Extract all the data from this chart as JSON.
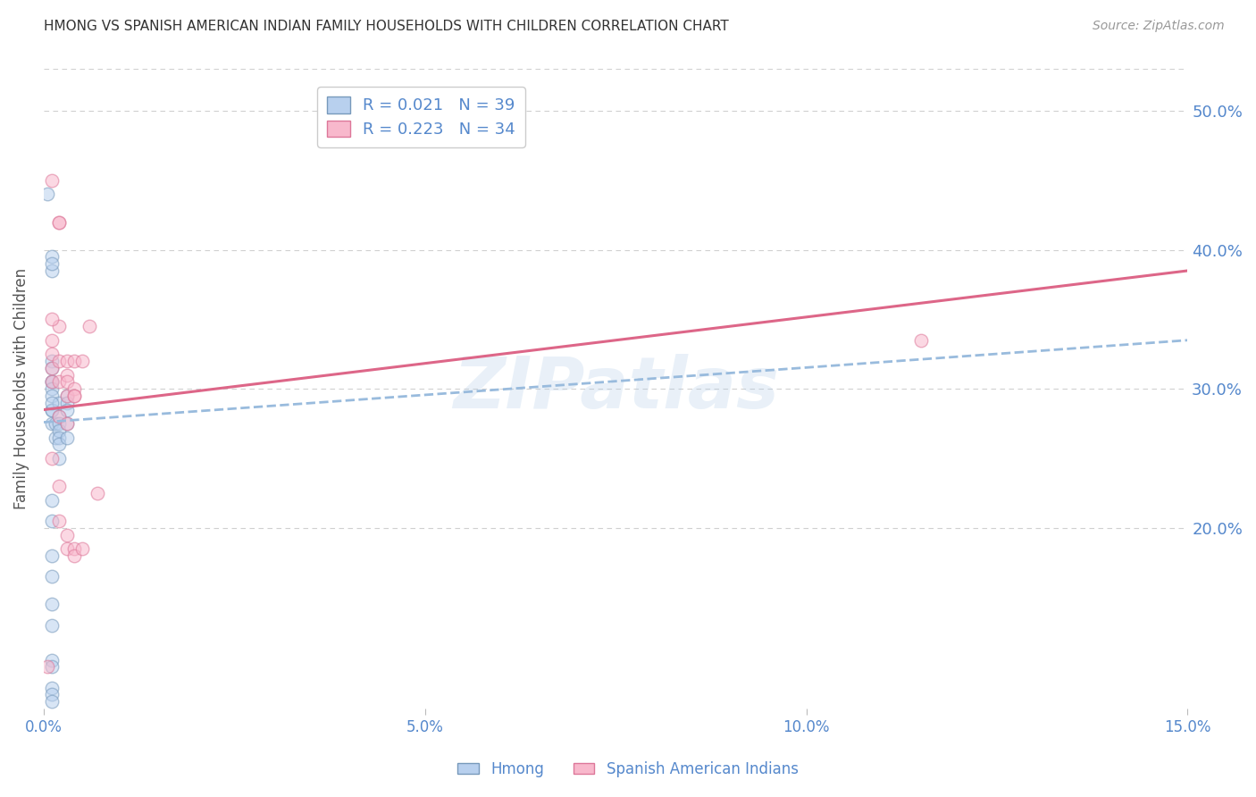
{
  "title": "HMONG VS SPANISH AMERICAN INDIAN FAMILY HOUSEHOLDS WITH CHILDREN CORRELATION CHART",
  "source": "Source: ZipAtlas.com",
  "ylabel": "Family Households with Children",
  "watermark": "ZIPatlas",
  "bottom_legend": [
    "Hmong",
    "Spanish American Indians"
  ],
  "xmin": 0.0,
  "xmax": 0.15,
  "ymin": 0.07,
  "ymax": 0.53,
  "yticks": [
    0.2,
    0.3,
    0.4,
    0.5
  ],
  "xticks": [
    0.0,
    0.05,
    0.1,
    0.15
  ],
  "xtick_labels": [
    "0.0%",
    "5.0%",
    "10.0%",
    "15.0%"
  ],
  "ytick_labels": [
    "20.0%",
    "30.0%",
    "40.0%",
    "50.0%"
  ],
  "grid_color": "#d0d0d0",
  "background_color": "#ffffff",
  "axis_color": "#5588cc",
  "hmong_fill": "#b8d0ee",
  "spanish_fill": "#f8b8cc",
  "hmong_edge": "#7799bb",
  "spanish_edge": "#dd7799",
  "line_hmong": "#99bbdd",
  "line_spanish": "#dd6688",
  "title_color": "#333333",
  "hmong_x": [
    0.0005,
    0.001,
    0.001,
    0.001,
    0.001,
    0.001,
    0.001,
    0.001,
    0.001,
    0.001,
    0.001,
    0.001,
    0.0015,
    0.0015,
    0.002,
    0.002,
    0.002,
    0.002,
    0.002,
    0.002,
    0.002,
    0.003,
    0.003,
    0.003,
    0.003,
    0.003,
    0.001,
    0.001,
    0.001,
    0.001,
    0.001,
    0.001,
    0.001,
    0.001,
    0.001,
    0.001,
    0.001,
    0.001,
    0.001
  ],
  "hmong_y": [
    0.44,
    0.395,
    0.385,
    0.32,
    0.315,
    0.305,
    0.305,
    0.3,
    0.295,
    0.285,
    0.285,
    0.275,
    0.275,
    0.265,
    0.29,
    0.28,
    0.275,
    0.27,
    0.265,
    0.26,
    0.25,
    0.295,
    0.29,
    0.285,
    0.275,
    0.265,
    0.22,
    0.205,
    0.18,
    0.165,
    0.145,
    0.13,
    0.105,
    0.1,
    0.085,
    0.08,
    0.075,
    0.29,
    0.39
  ],
  "spanish_x": [
    0.001,
    0.001,
    0.001,
    0.001,
    0.002,
    0.002,
    0.002,
    0.002,
    0.002,
    0.003,
    0.003,
    0.003,
    0.003,
    0.003,
    0.004,
    0.004,
    0.004,
    0.005,
    0.006,
    0.007,
    0.001,
    0.001,
    0.002,
    0.002,
    0.003,
    0.003,
    0.004,
    0.115,
    0.001,
    0.002,
    0.004,
    0.004,
    0.005,
    0.0005
  ],
  "spanish_y": [
    0.335,
    0.325,
    0.315,
    0.305,
    0.42,
    0.345,
    0.32,
    0.305,
    0.28,
    0.32,
    0.31,
    0.305,
    0.295,
    0.275,
    0.32,
    0.3,
    0.295,
    0.32,
    0.345,
    0.225,
    0.35,
    0.25,
    0.23,
    0.205,
    0.195,
    0.185,
    0.185,
    0.335,
    0.45,
    0.42,
    0.295,
    0.18,
    0.185,
    0.1
  ],
  "hmong_line_x0": 0.0,
  "hmong_line_x1": 0.15,
  "hmong_line_y0": 0.276,
  "hmong_line_y1": 0.335,
  "spanish_line_x0": 0.0,
  "spanish_line_x1": 0.15,
  "spanish_line_y0": 0.285,
  "spanish_line_y1": 0.385,
  "legend_R1": "R = 0.021",
  "legend_N1": "N = 39",
  "legend_R2": "R = 0.223",
  "legend_N2": "N = 34",
  "marker_size": 110,
  "marker_alpha": 0.55,
  "marker_lw": 1.0
}
